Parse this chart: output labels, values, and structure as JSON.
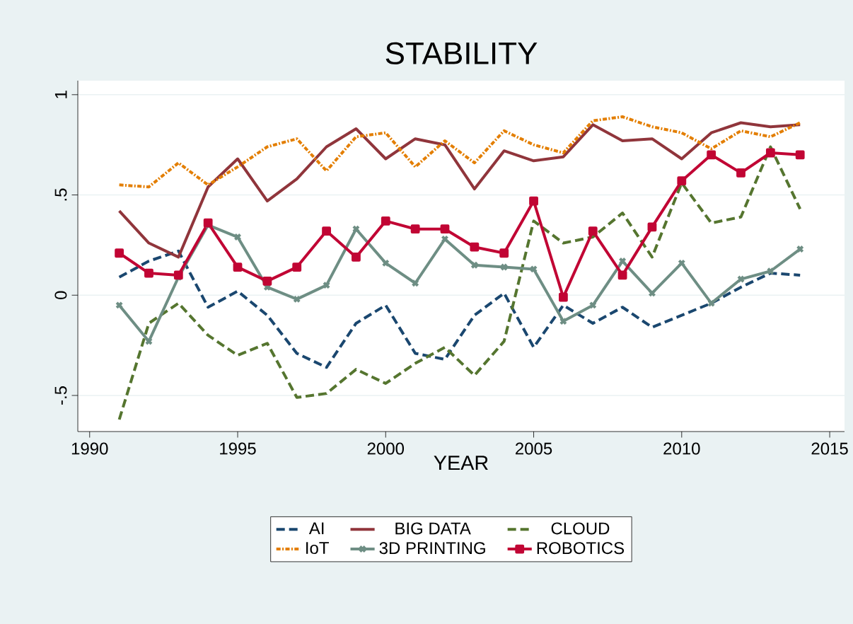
{
  "chart_data": {
    "type": "line",
    "title": "STABILITY",
    "xlabel": "YEAR",
    "x": [
      1991,
      1992,
      1993,
      1994,
      1995,
      1996,
      1997,
      1998,
      1999,
      2000,
      2001,
      2002,
      2003,
      2004,
      2005,
      2006,
      2007,
      2008,
      2009,
      2010,
      2011,
      2012,
      2013,
      2014
    ],
    "series": [
      {
        "name": "AI",
        "color": "#1a476f",
        "line_style": "dashed",
        "marker": "none",
        "values": [
          0.09,
          0.17,
          0.22,
          -0.06,
          0.02,
          -0.1,
          -0.29,
          -0.36,
          -0.14,
          -0.05,
          -0.29,
          -0.32,
          -0.1,
          0.01,
          -0.26,
          -0.05,
          -0.14,
          -0.06,
          -0.16,
          -0.1,
          -0.04,
          0.04,
          0.11,
          0.1
        ]
      },
      {
        "name": "BIG DATA",
        "color": "#90353b",
        "line_style": "solid",
        "marker": "none",
        "values": [
          0.42,
          0.26,
          0.19,
          0.54,
          0.68,
          0.47,
          0.58,
          0.74,
          0.83,
          0.68,
          0.78,
          0.75,
          0.53,
          0.72,
          0.67,
          0.69,
          0.85,
          0.77,
          0.78,
          0.68,
          0.81,
          0.86,
          0.84,
          0.85
        ]
      },
      {
        "name": "CLOUD",
        "color": "#55752f",
        "line_style": "dashed",
        "marker": "none",
        "values": [
          -0.62,
          -0.14,
          -0.04,
          -0.2,
          -0.3,
          -0.24,
          -0.51,
          -0.49,
          -0.37,
          -0.44,
          -0.34,
          -0.26,
          -0.4,
          -0.23,
          0.37,
          0.26,
          0.29,
          0.41,
          0.19,
          0.56,
          0.36,
          0.39,
          0.74,
          0.43
        ]
      },
      {
        "name": "IoT",
        "color": "#e37e00",
        "line_style": "dotted",
        "marker": "none",
        "values": [
          0.55,
          0.54,
          0.66,
          0.55,
          0.64,
          0.74,
          0.78,
          0.62,
          0.79,
          0.81,
          0.64,
          0.77,
          0.66,
          0.82,
          0.75,
          0.71,
          0.87,
          0.89,
          0.84,
          0.81,
          0.73,
          0.82,
          0.79,
          0.86
        ]
      },
      {
        "name": "3D PRINTING",
        "color": "#6e8e84",
        "line_style": "solid",
        "marker": "cross",
        "values": [
          -0.05,
          -0.23,
          0.09,
          0.35,
          0.29,
          0.04,
          -0.02,
          0.05,
          0.33,
          0.16,
          0.06,
          0.28,
          0.15,
          0.14,
          0.13,
          -0.13,
          -0.05,
          0.17,
          0.01,
          0.16,
          -0.04,
          0.08,
          0.12,
          0.23
        ]
      },
      {
        "name": "ROBOTICS",
        "color": "#c10534",
        "line_style": "solid",
        "marker": "square",
        "values": [
          0.21,
          0.11,
          0.1,
          0.36,
          0.14,
          0.07,
          0.14,
          0.32,
          0.19,
          0.37,
          0.33,
          0.33,
          0.24,
          0.21,
          0.47,
          -0.01,
          0.32,
          0.1,
          0.34,
          0.57,
          0.7,
          0.61,
          0.71,
          0.7
        ]
      }
    ],
    "xlim": [
      1989.6,
      2015.5
    ],
    "ylim": [
      -0.68,
      1.07
    ],
    "xticks": [
      1990,
      1995,
      2000,
      2005,
      2010,
      2015
    ],
    "yticks": [
      {
        "value": -0.5,
        "label": "-.5"
      },
      0,
      {
        "value": 0.5,
        "label": ".5"
      },
      1
    ],
    "grid": "y",
    "legend": "bottom"
  }
}
